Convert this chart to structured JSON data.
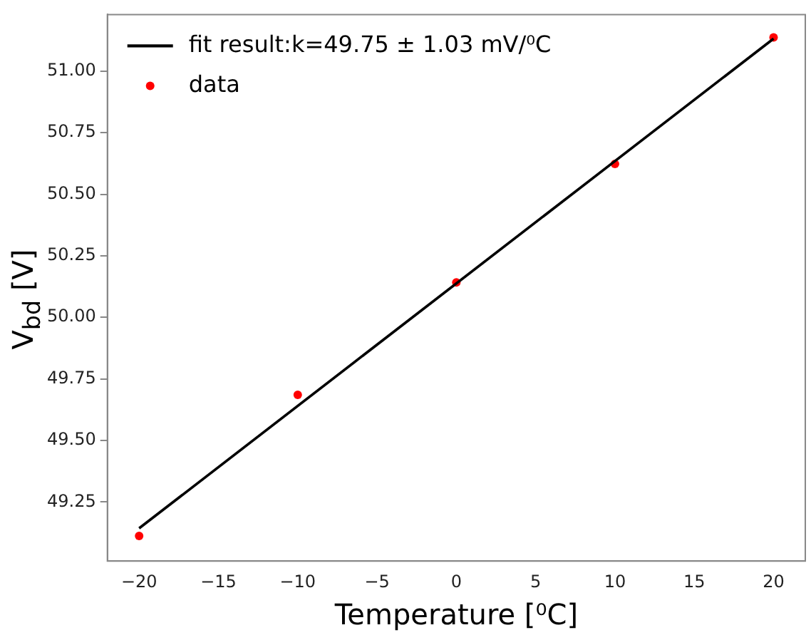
{
  "chart_data": {
    "type": "scatter",
    "xlabel": "Temperature [⁰C]",
    "ylabel": "V$_{bd}$ [V]",
    "xlim": [
      -22,
      22
    ],
    "xticks": [
      {
        "value": -20,
        "label": "−20"
      },
      {
        "value": -15,
        "label": "−15"
      },
      {
        "value": -10,
        "label": "−10"
      },
      {
        "value": -5,
        "label": "−5"
      },
      0,
      5,
      10,
      15,
      20
    ],
    "ylim": [
      49.01,
      51.23
    ],
    "yticks": [
      {
        "value": 49.25,
        "label": "49.25"
      },
      {
        "value": 49.5,
        "label": "49.50"
      },
      {
        "value": 49.75,
        "label": "49.75"
      },
      {
        "value": 50,
        "label": "50.00"
      },
      {
        "value": 50.25,
        "label": "50.25"
      },
      {
        "value": 50.5,
        "label": "50.50"
      },
      {
        "value": 50.75,
        "label": "50.75"
      },
      {
        "value": 51,
        "label": "51.00"
      }
    ],
    "grid": false,
    "legend": "top left",
    "series": [
      {
        "name": "fit result:k=49.75 ± 1.03 mV/⁰C",
        "type": "line",
        "color": "#000000",
        "marker": "none",
        "line_style": "solid",
        "x": [
          -20,
          20
        ],
        "values": [
          49.143,
          51.132
        ]
      },
      {
        "name": "data",
        "color": "#ff0000",
        "marker": "circle",
        "x": [
          -20,
          -10,
          0,
          10,
          20
        ],
        "values": [
          49.112,
          49.685,
          50.142,
          50.623,
          51.137
        ]
      }
    ]
  }
}
